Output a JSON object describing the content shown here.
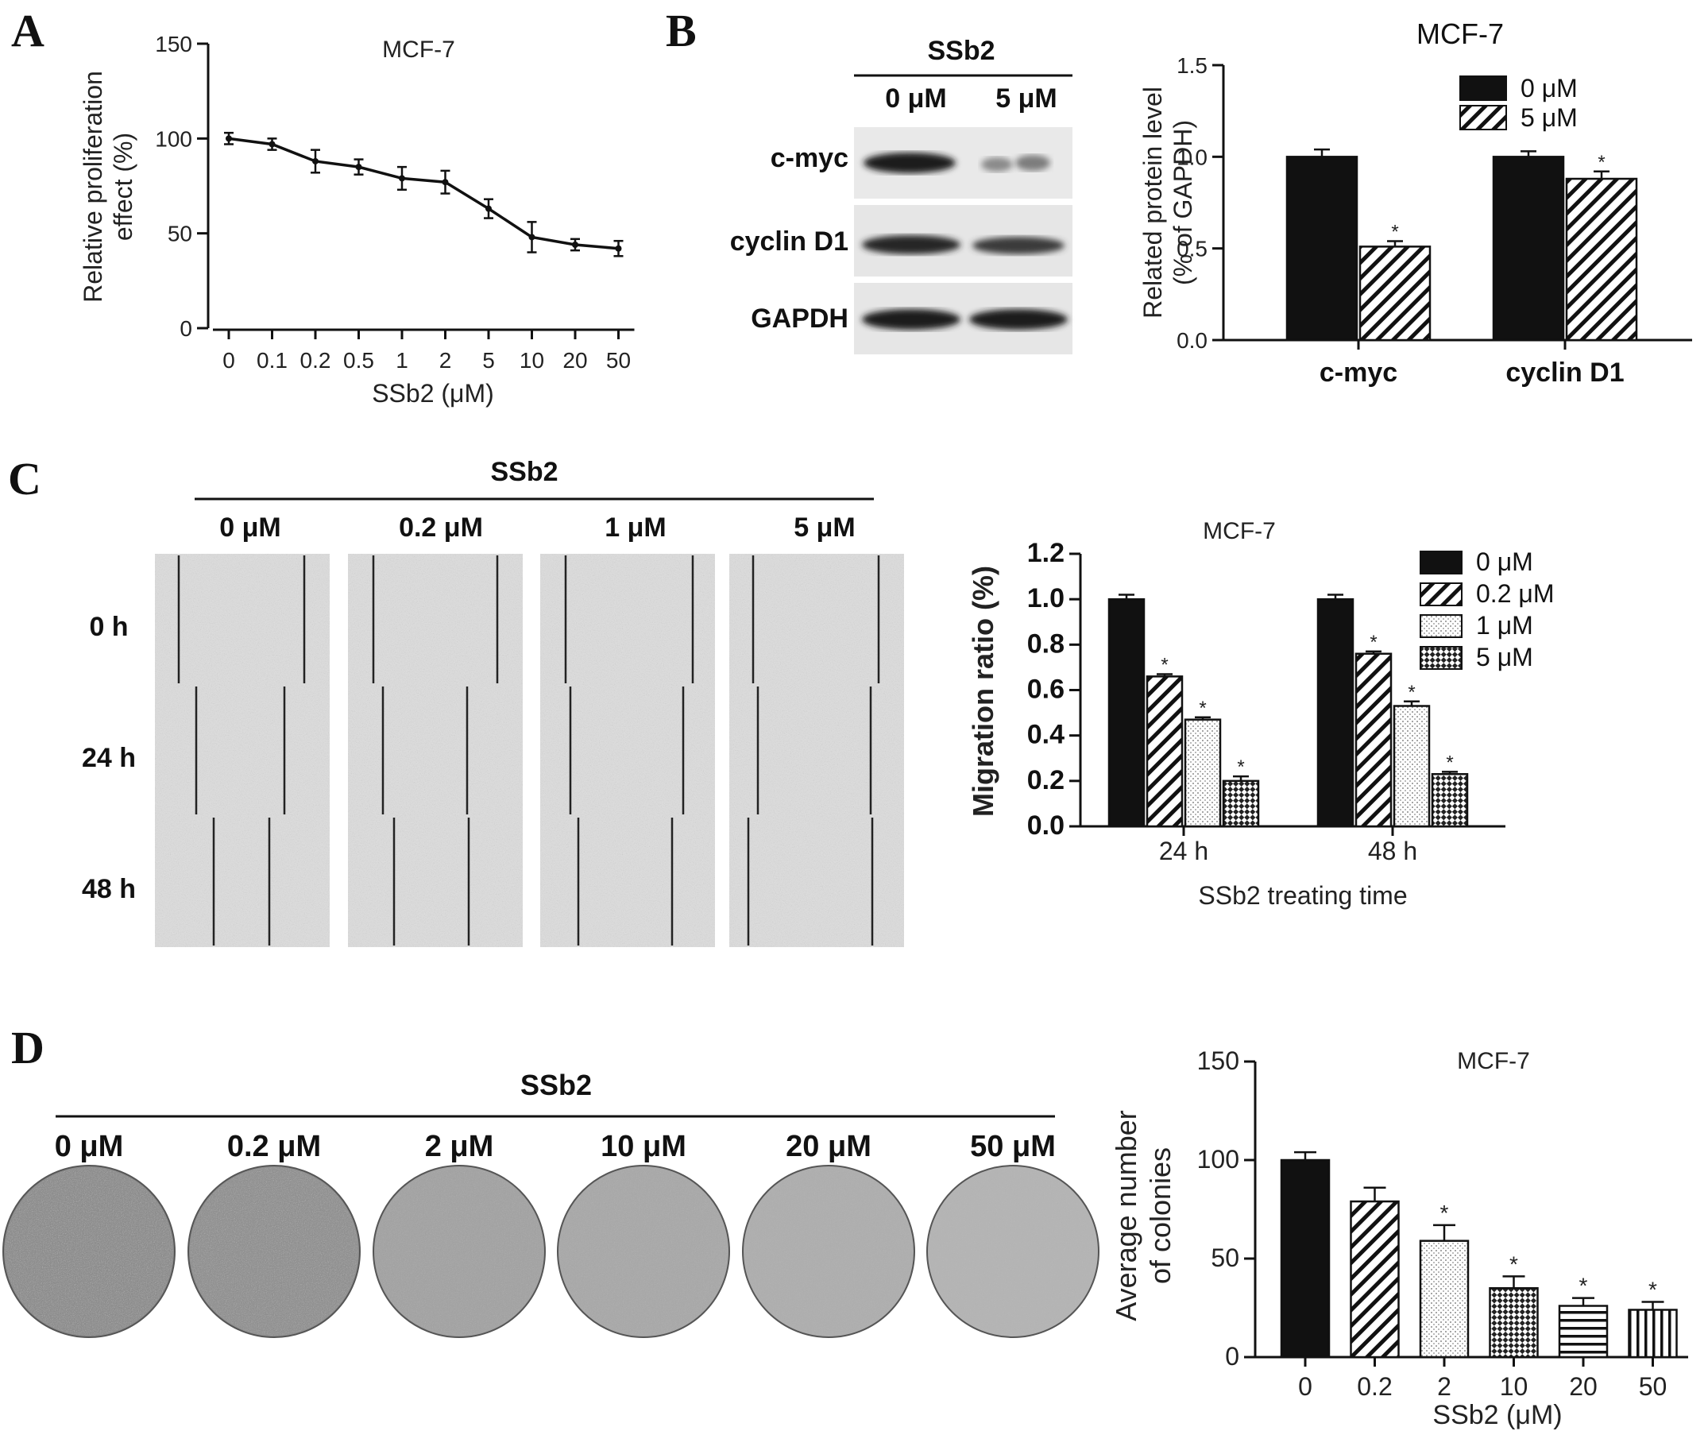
{
  "panels": {
    "A": {
      "letter": "A"
    },
    "B": {
      "letter": "B",
      "blot_header": "SSb2",
      "lane_labels": [
        "0  μM",
        "5  μM"
      ],
      "row_labels": [
        "c-myc",
        "cyclin D1",
        "GAPDH"
      ]
    },
    "C": {
      "letter": "C",
      "header": "SSb2",
      "col_labels": [
        "0  μM",
        "0.2  μM",
        "1  μM",
        "5  μM"
      ],
      "row_labels": [
        "0  h",
        "24  h",
        "48  h"
      ]
    },
    "D": {
      "letter": "D",
      "header": "SSb2",
      "col_labels": [
        "0 μM",
        "0.2 μM",
        "2 μM",
        "10 μM",
        "20 μM",
        "50 μM"
      ]
    }
  },
  "chart_data": [
    {
      "id": "A",
      "type": "line",
      "title": "MCF-7",
      "xlabel": "SSb2  (μM)",
      "ylabel": [
        "Relative proliferation",
        "effect (%)"
      ],
      "categories": [
        "0",
        "0.1",
        "0.2",
        "0.5",
        "1",
        "2",
        "5",
        "10",
        "20",
        "50"
      ],
      "values": [
        100,
        97,
        88,
        85,
        79,
        77,
        63,
        48,
        44,
        42
      ],
      "errors": [
        3,
        3,
        6,
        4,
        6,
        6,
        5,
        8,
        3,
        4
      ],
      "ylim": [
        0,
        150
      ],
      "yticks": [
        "0",
        "50",
        "100",
        "150"
      ]
    },
    {
      "id": "B",
      "type": "bar",
      "title": "MCF-7",
      "ylabel": [
        "Related protein level",
        "(% of GAPDH)"
      ],
      "categories": [
        "c-myc",
        "cyclin D1"
      ],
      "series": [
        {
          "name": "0  μM",
          "values": [
            1.0,
            1.0
          ],
          "errors": [
            0.04,
            0.03
          ],
          "stars": [
            false,
            false
          ]
        },
        {
          "name": "5  μM",
          "values": [
            0.51,
            0.88
          ],
          "errors": [
            0.03,
            0.04
          ],
          "stars": [
            true,
            true
          ]
        }
      ],
      "ylim": [
        0,
        1.5
      ],
      "yticks": [
        "0.0",
        "0.5",
        "1.0",
        "1.5"
      ],
      "star": "*"
    },
    {
      "id": "C",
      "type": "bar",
      "title": "MCF-7",
      "xlabel": "SSb2 treating time",
      "ylabel": "Migration  ratio (%)",
      "categories": [
        "24  h",
        "48  h"
      ],
      "series": [
        {
          "name": "0  μM",
          "values": [
            1.0,
            1.0
          ],
          "errors": [
            0.02,
            0.02
          ],
          "stars": [
            false,
            false
          ]
        },
        {
          "name": "0.2  μM",
          "values": [
            0.66,
            0.76
          ],
          "errors": [
            0.01,
            0.01
          ],
          "stars": [
            true,
            true
          ]
        },
        {
          "name": "1  μM",
          "values": [
            0.47,
            0.53
          ],
          "errors": [
            0.01,
            0.02
          ],
          "stars": [
            true,
            true
          ]
        },
        {
          "name": "5  μM",
          "values": [
            0.2,
            0.23
          ],
          "errors": [
            0.02,
            0.01
          ],
          "stars": [
            true,
            true
          ]
        }
      ],
      "ylim": [
        0,
        1.2
      ],
      "yticks": [
        "0.0",
        "0.2",
        "0.4",
        "0.6",
        "0.8",
        "1.0",
        "1.2"
      ],
      "star": "*"
    },
    {
      "id": "D",
      "type": "bar",
      "title": "MCF-7",
      "xlabel": "SSb2  (μM)",
      "ylabel": [
        "Average number",
        "of colonies"
      ],
      "categories": [
        "0",
        "0.2",
        "2",
        "10",
        "20",
        "50"
      ],
      "values": [
        100,
        79,
        59,
        35,
        26,
        24
      ],
      "errors": [
        4,
        7,
        8,
        6,
        4,
        4
      ],
      "stars": [
        false,
        false,
        true,
        true,
        true,
        true
      ],
      "ylim": [
        0,
        150
      ],
      "yticks": [
        "0",
        "50",
        "100",
        "150"
      ],
      "star": "*"
    }
  ]
}
